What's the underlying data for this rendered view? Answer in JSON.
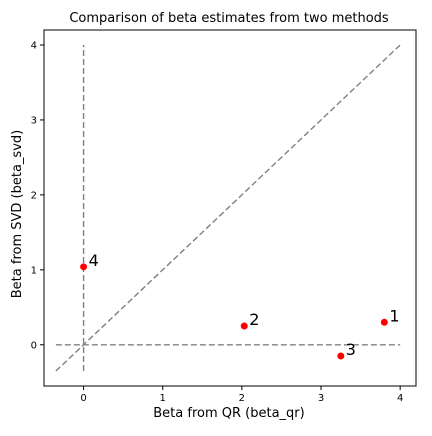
{
  "chart_data": {
    "type": "scatter",
    "title": "Comparison of beta estimates from two methods",
    "xlabel": "Beta from QR (beta_qr)",
    "ylabel": "Beta from SVD (beta_svd)",
    "xlim": [
      -0.5,
      4.2
    ],
    "ylim": [
      -0.55,
      4.2
    ],
    "xticks": [
      0,
      1,
      2,
      3,
      4
    ],
    "yticks": [
      0,
      1,
      2,
      3,
      4
    ],
    "grid": false,
    "legend": "none",
    "point_color": "#ff0000",
    "reference_line_color": "#808080",
    "points": [
      {
        "label": "1",
        "x": 3.8,
        "y": 0.3
      },
      {
        "label": "2",
        "x": 2.03,
        "y": 0.25
      },
      {
        "label": "3",
        "x": 3.25,
        "y": -0.15
      },
      {
        "label": "4",
        "x": 0.0,
        "y": 1.04
      }
    ],
    "reference_lines": {
      "horizontal_y": 0,
      "vertical_x": 0,
      "diagonal_from": [
        -0.35,
        -0.35
      ],
      "diagonal_to": [
        4.0,
        4.0
      ]
    }
  }
}
